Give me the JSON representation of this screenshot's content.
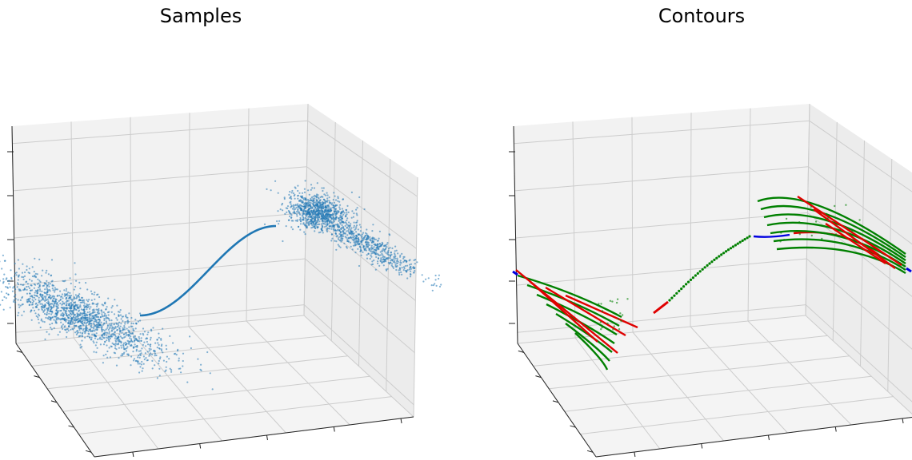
{
  "chart_data": [
    {
      "type": "scatter",
      "title": "Samples",
      "projection": "3d",
      "grid": true,
      "tick_labels": "hidden",
      "colors": {
        "points": "#1f77b4",
        "panes": "#f2f2f2",
        "grid": "#cccccc"
      },
      "series": [
        {
          "shape": "dense point cloud (left)"
        },
        {
          "shape": "thin curve"
        },
        {
          "shape": "dense point cloud (right)"
        }
      ]
    },
    {
      "type": "line",
      "title": "Contours",
      "projection": "3d",
      "grid": true,
      "tick_labels": "hidden",
      "colors": {
        "green": "#008000",
        "red": "#e00000",
        "blue": "#0000e0",
        "panes": "#f2f2f2",
        "grid": "#cccccc"
      },
      "series": [
        {
          "color": "green"
        },
        {
          "color": "red"
        },
        {
          "color": "blue"
        }
      ]
    }
  ]
}
